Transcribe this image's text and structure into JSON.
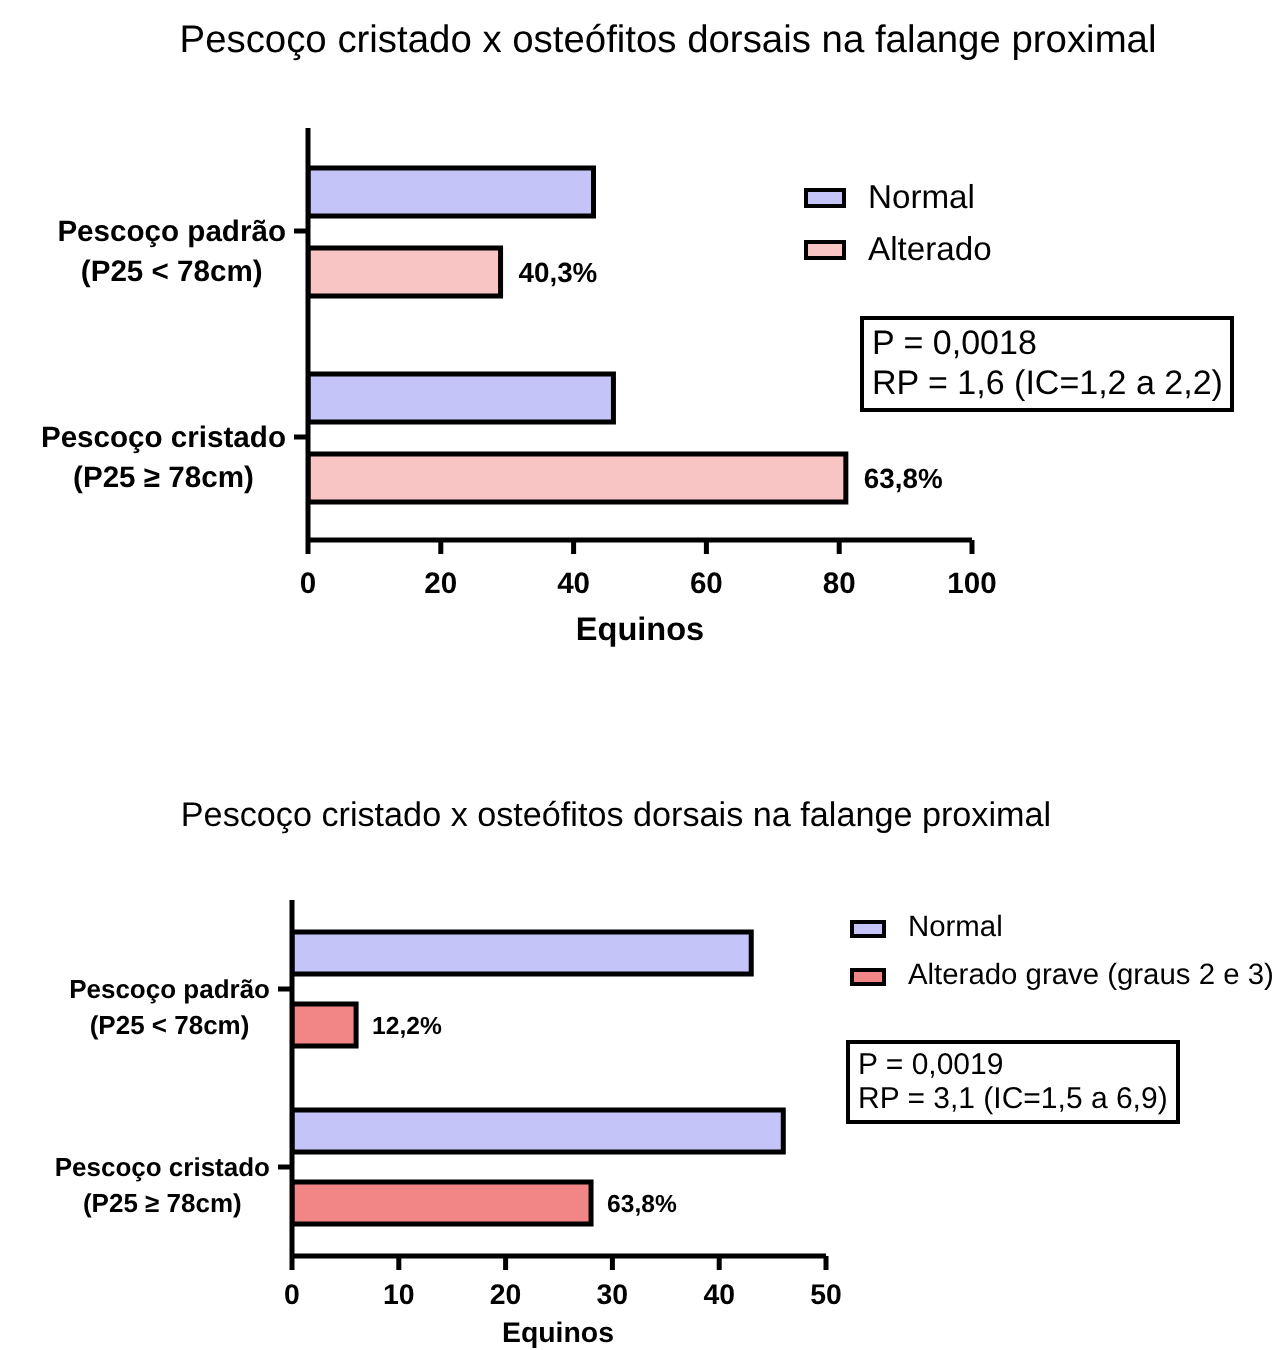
{
  "chart_data": [
    {
      "type": "bar",
      "orientation": "horizontal",
      "title": "Pescoço cristado x osteófitos dorsais na falange proximal",
      "xlabel": "Equinos",
      "categories": [
        "Pescoço padrão\n(P25 < 78cm)",
        "Pescoço cristado\n(P25 ≥ 78cm)"
      ],
      "series": [
        {
          "name": "Normal",
          "color": "#c4c4f8",
          "values": [
            43,
            46
          ]
        },
        {
          "name": "Alterado",
          "color": "#f8c4c4",
          "values": [
            29,
            81
          ]
        }
      ],
      "xlim": [
        0,
        100
      ],
      "xticks": [
        0,
        20,
        40,
        60,
        80,
        100
      ],
      "legend": "right",
      "annotations": [
        "P = 0,0018",
        "RP = 1,6 (IC=1,2 a 2,2)",
        "40,3%",
        "63,8%"
      ]
    },
    {
      "type": "bar",
      "orientation": "horizontal",
      "title": "Pescoço cristado x osteófitos dorsais na falange proximal",
      "xlabel": "Equinos",
      "categories": [
        "Pescoço padrão\n(P25 < 78cm)",
        "Pescoço cristado\n(P25 ≥ 78cm)"
      ],
      "series": [
        {
          "name": "Normal",
          "color": "#c4c4f8",
          "values": [
            43,
            46
          ]
        },
        {
          "name": "Alterado grave (graus 2 e 3)",
          "color": "#f28586",
          "values": [
            6,
            28
          ]
        }
      ],
      "xlim": [
        0,
        50
      ],
      "xticks": [
        0,
        10,
        20,
        30,
        40,
        50
      ],
      "legend": "right",
      "annotations": [
        "P = 0,0019",
        "RP = 3,1 (IC=1,5 a 6,9)",
        "12,2%",
        "63,8%"
      ]
    }
  ]
}
